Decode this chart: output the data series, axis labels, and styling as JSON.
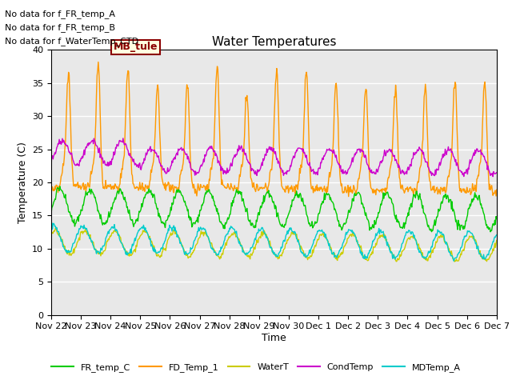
{
  "title": "Water Temperatures",
  "xlabel": "Time",
  "ylabel": "Temperature (C)",
  "ylim": [
    0,
    40
  ],
  "yticks": [
    0,
    5,
    10,
    15,
    20,
    25,
    30,
    35,
    40
  ],
  "bg_color": "#e8e8e8",
  "fig_color": "#ffffff",
  "no_data_texts": [
    "No data for f_FR_temp_A",
    "No data for f_FR_temp_B",
    "No data for f_WaterTemp_CTD"
  ],
  "mb_tule_text": "MB_tule",
  "series_colors": {
    "FR_temp_C": "#00cc00",
    "FD_Temp_1": "#ff9900",
    "WaterT": "#cccc00",
    "CondTemp": "#cc00cc",
    "MDTemp_A": "#00cccc"
  },
  "x_tick_labels": [
    "Nov 22",
    "Nov 23",
    "Nov 24",
    "Nov 25",
    "Nov 26",
    "Nov 27",
    "Nov 28",
    "Nov 29",
    "Nov 30",
    "Dec 1",
    "Dec 2",
    "Dec 3",
    "Dec 4",
    "Dec 5",
    "Dec 6",
    "Dec 7"
  ],
  "num_days": 15,
  "points_per_day": 48
}
